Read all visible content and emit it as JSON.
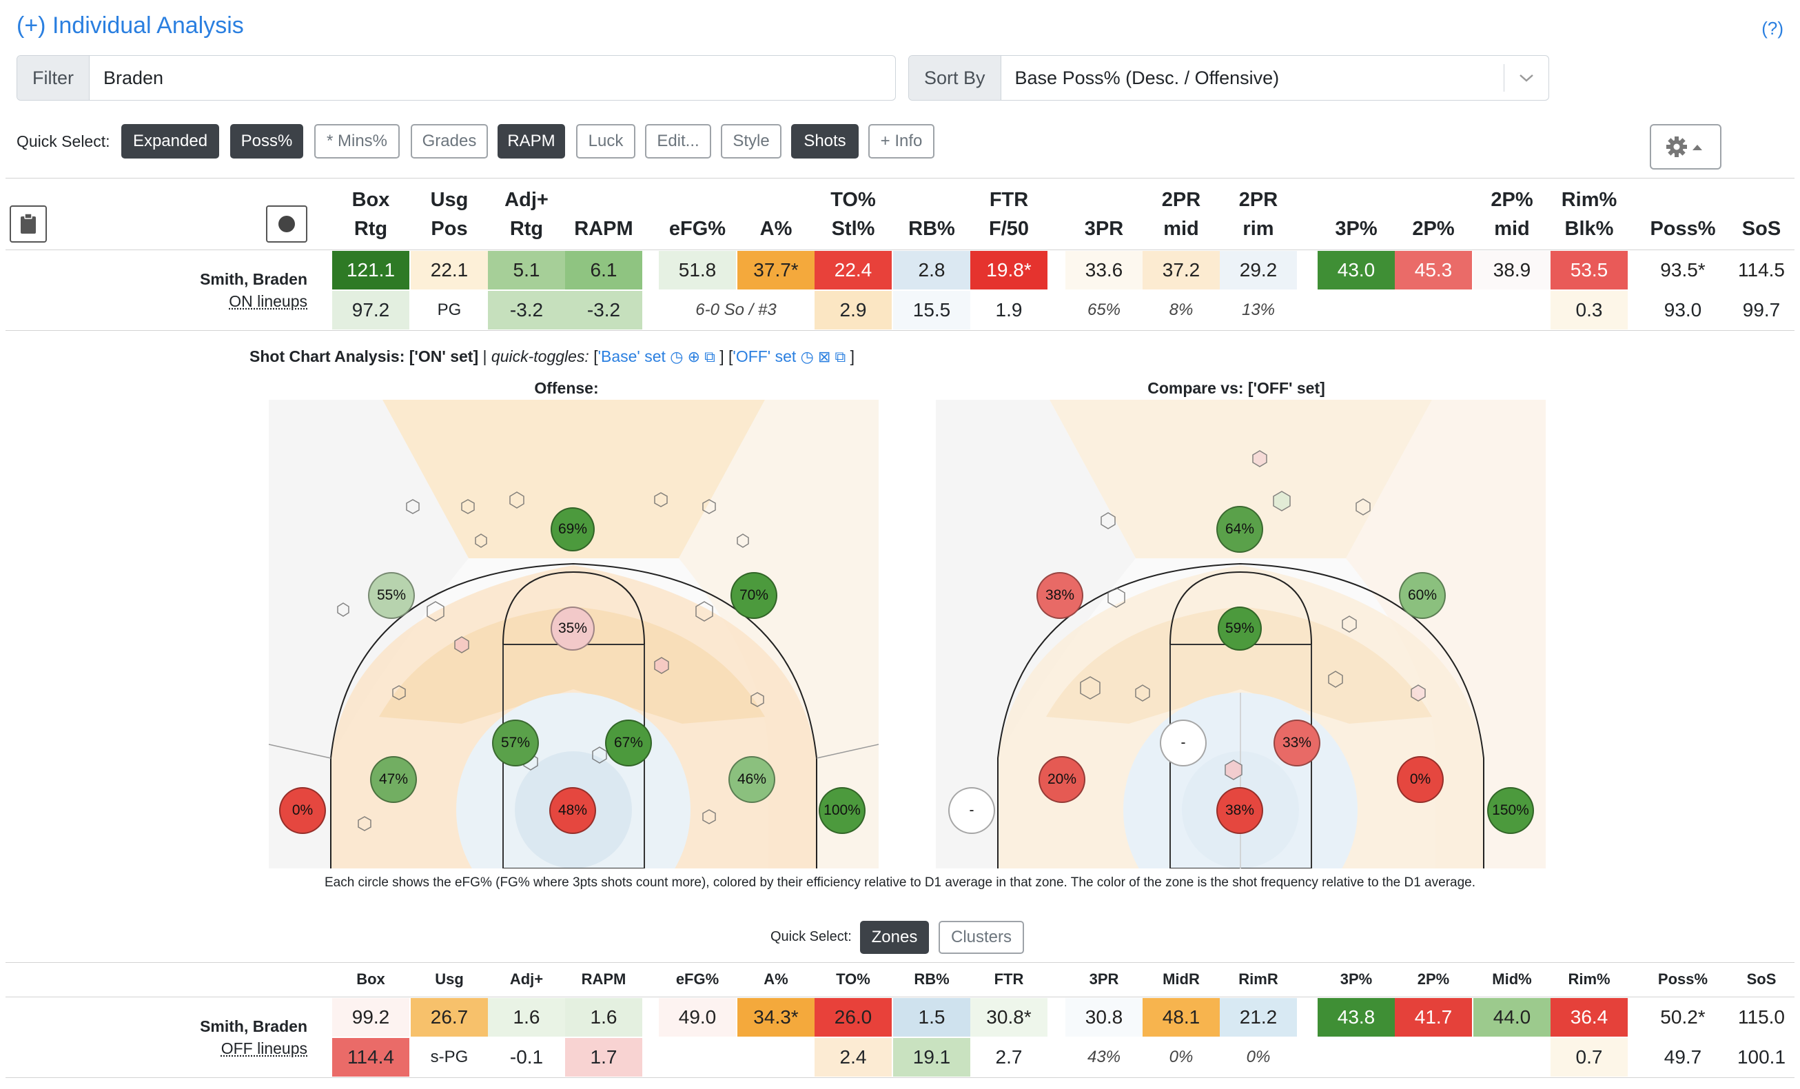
{
  "header": {
    "title": "(+) Individual Analysis",
    "help": "(?)"
  },
  "filter": {
    "label": "Filter",
    "value": "Braden"
  },
  "sort": {
    "label": "Sort By",
    "value": "Base Poss% (Desc. / Offensive)"
  },
  "quick_select": {
    "label": "Quick Select:",
    "buttons": [
      {
        "label": "Expanded",
        "active": true
      },
      {
        "label": "Poss%",
        "active": true
      },
      {
        "label": "* Mins%",
        "active": false
      },
      {
        "label": "Grades",
        "active": false
      },
      {
        "label": "RAPM",
        "active": true
      },
      {
        "label": "Luck",
        "active": false
      },
      {
        "label": "Edit...",
        "active": false
      },
      {
        "label": "Style",
        "active": false
      },
      {
        "label": "Shots",
        "active": true
      },
      {
        "label": "+ Info",
        "active": false
      }
    ]
  },
  "table_top": {
    "headers": [
      {
        "l1": "Box",
        "l2": "Rtg"
      },
      {
        "l1": "Usg",
        "l2": "Pos"
      },
      {
        "l1": "Adj+",
        "l2": "Rtg"
      },
      {
        "l1": "",
        "l2": "RAPM"
      },
      {
        "l1": "",
        "l2": "eFG%"
      },
      {
        "l1": "",
        "l2": "A%"
      },
      {
        "l1": "TO%",
        "l2": "Stl%"
      },
      {
        "l1": "",
        "l2": "RB%"
      },
      {
        "l1": "FTR",
        "l2": "F/50"
      },
      {
        "l1": "",
        "l2": "3PR"
      },
      {
        "l1": "2PR",
        "l2": "mid"
      },
      {
        "l1": "2PR",
        "l2": "rim"
      },
      {
        "l1": "",
        "l2": "3P%"
      },
      {
        "l1": "",
        "l2": "2P%"
      },
      {
        "l1": "2P%",
        "l2": "mid"
      },
      {
        "l1": "Rim%",
        "l2": "Blk%"
      },
      {
        "l1": "",
        "l2": "Poss%"
      },
      {
        "l1": "",
        "l2": "SoS"
      }
    ],
    "player": "Smith, Braden",
    "lineup": "ON lineups",
    "row1": [
      "121.1",
      "22.1",
      "5.1",
      "6.1",
      "51.8",
      "37.7*",
      "22.4",
      "2.8",
      "19.8*",
      "33.6",
      "37.2",
      "29.2",
      "43.0",
      "45.3",
      "38.9",
      "53.5",
      "93.5*",
      "114.5"
    ],
    "row2": [
      "97.2",
      "PG",
      "-3.2",
      "-3.2",
      "6-0 So / #3",
      "",
      "2.9",
      "15.5",
      "1.9",
      "65%",
      "8%",
      "13%",
      "",
      "",
      "",
      "0.3",
      "93.0",
      "99.7"
    ]
  },
  "shot_chart": {
    "heading": "Shot Chart Analysis: ['ON' set]",
    "quick_toggles": "quick-toggles:",
    "base_set": "'Base' set",
    "off_set": "'OFF' set",
    "offense_title": "Offense:",
    "compare_title": "Compare vs: ['OFF' set]",
    "left_zones": [
      "69%",
      "55%",
      "70%",
      "35%",
      "57%",
      "67%",
      "47%",
      "46%",
      "0%",
      "48%",
      "100%"
    ],
    "right_zones": [
      "64%",
      "38%",
      "60%",
      "59%",
      "-",
      "33%",
      "20%",
      "0%",
      "-",
      "38%",
      "150%"
    ],
    "caption": "Each circle shows the eFG% (FG% where 3pts shots count more), colored by their efficiency relative to D1 average in that zone. The color of the zone is the shot frequency relative to the D1 average."
  },
  "quick_select2": {
    "label": "Quick Select:",
    "zones": "Zones",
    "clusters": "Clusters"
  },
  "table_bottom": {
    "headers": [
      "Box",
      "Usg",
      "Adj+",
      "RAPM",
      "eFG%",
      "A%",
      "TO%",
      "RB%",
      "FTR",
      "3PR",
      "MidR",
      "RimR",
      "3P%",
      "2P%",
      "Mid%",
      "Rim%",
      "Poss%",
      "SoS"
    ],
    "player": "Smith, Braden",
    "lineup": "OFF lineups",
    "row1": [
      "99.2",
      "26.7",
      "1.6",
      "1.6",
      "49.0",
      "34.3*",
      "26.0",
      "1.5",
      "30.8*",
      "30.8",
      "48.1",
      "21.2",
      "43.8",
      "41.7",
      "44.0",
      "36.4",
      "50.2*",
      "115.0"
    ],
    "row2": [
      "114.4",
      "s-PG",
      "-0.1",
      "1.7",
      "",
      "",
      "2.4",
      "19.1",
      "2.7",
      "43%",
      "0%",
      "0%",
      "",
      "",
      "",
      "0.7",
      "49.7",
      "100.1"
    ]
  }
}
